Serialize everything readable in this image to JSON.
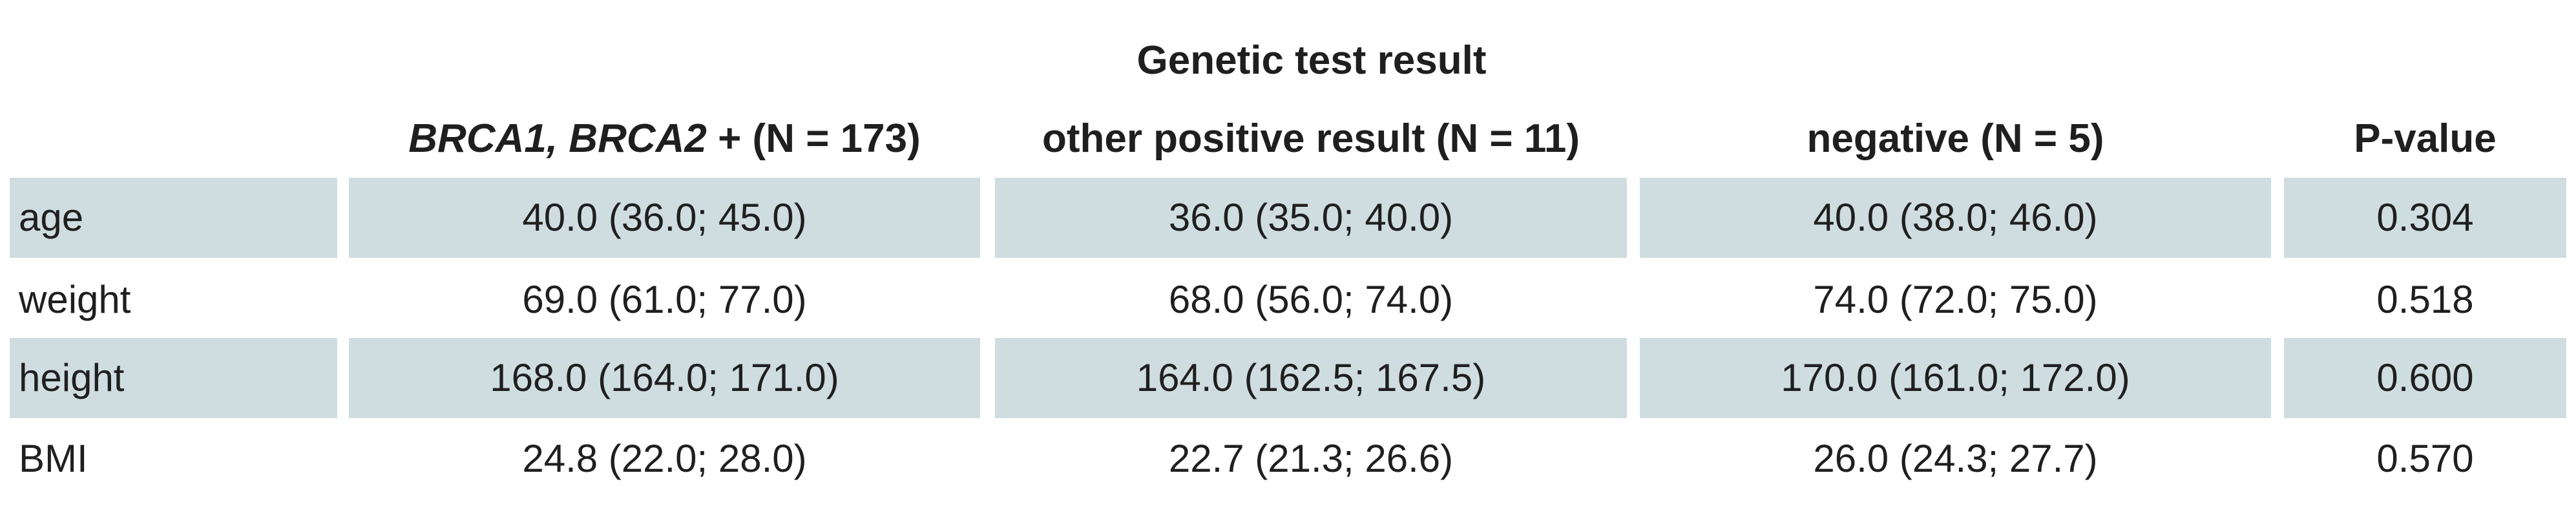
{
  "table": {
    "group_header": "Genetic test result",
    "columns": [
      {
        "prefix": "",
        "italic": "",
        "suffix": ""
      },
      {
        "prefix": "",
        "italic": "BRCA1, BRCA2",
        "suffix": " + (N = 173)"
      },
      {
        "prefix": "other positive result (N = 11)",
        "italic": "",
        "suffix": ""
      },
      {
        "prefix": "negative (N = 5)",
        "italic": "",
        "suffix": ""
      },
      {
        "prefix": "P-value",
        "italic": "",
        "suffix": ""
      }
    ],
    "rows": [
      {
        "label": "age",
        "c1": "40.0 (36.0; 45.0)",
        "c2": "36.0 (35.0; 40.0)",
        "c3": "40.0 (38.0; 46.0)",
        "p": "0.304"
      },
      {
        "label": "weight",
        "c1": "69.0 (61.0; 77.0)",
        "c2": "68.0 (56.0; 74.0)",
        "c3": "74.0 (72.0; 75.0)",
        "p": "0.518"
      },
      {
        "label": "height",
        "c1": "168.0 (164.0; 171.0)",
        "c2": "164.0 (162.5; 167.5)",
        "c3": "170.0 (161.0; 172.0)",
        "p": "0.600"
      },
      {
        "label": "BMI",
        "c1": "24.8 (22.0; 28.0)",
        "c2": "22.7 (21.3; 26.6)",
        "c3": "26.0 (24.3; 27.7)",
        "p": "0.570"
      }
    ],
    "colors": {
      "shade": "#cfdde0",
      "text": "#1f1f1f"
    }
  }
}
